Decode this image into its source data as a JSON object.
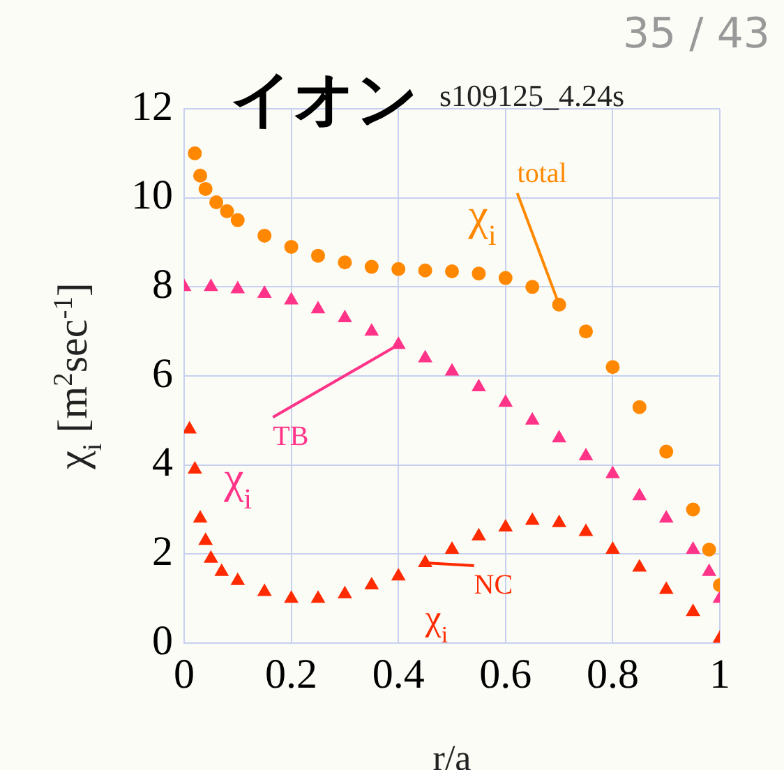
{
  "chart_data": {
    "type": "scatter",
    "title": "イオン",
    "subtitle": "s109125_4.24s",
    "xlabel": "r/a",
    "ylabel": "χ$_{i}$ [m$^{2}$sec$^{-1}$]",
    "xlim": [
      0,
      1
    ],
    "xticks": [
      0,
      0.2,
      0.4,
      0.6,
      0.8,
      1
    ],
    "ylim": [
      0,
      12
    ],
    "yticks": [
      0,
      2,
      4,
      6,
      8,
      10,
      12
    ],
    "grid": true,
    "series": [
      {
        "name": "total",
        "color": "#ff8800",
        "marker": "circle",
        "x": [
          0.02,
          0.03,
          0.04,
          0.06,
          0.08,
          0.1,
          0.15,
          0.2,
          0.25,
          0.3,
          0.35,
          0.4,
          0.45,
          0.5,
          0.55,
          0.6,
          0.65,
          0.7,
          0.75,
          0.8,
          0.85,
          0.9,
          0.95,
          0.98,
          1.0
        ],
        "values": [
          11.0,
          10.5,
          10.2,
          9.9,
          9.7,
          9.5,
          9.15,
          8.9,
          8.7,
          8.55,
          8.45,
          8.4,
          8.37,
          8.35,
          8.3,
          8.2,
          8.0,
          7.6,
          7.0,
          6.2,
          5.3,
          4.3,
          3.0,
          2.1,
          1.3
        ]
      },
      {
        "name": "TB",
        "color": "#ff3388",
        "marker": "triangle",
        "x": [
          0,
          0.05,
          0.1,
          0.15,
          0.2,
          0.25,
          0.3,
          0.35,
          0.4,
          0.45,
          0.5,
          0.55,
          0.6,
          0.65,
          0.7,
          0.75,
          0.8,
          0.85,
          0.9,
          0.95,
          0.98,
          1.0
        ],
        "values": [
          8.0,
          8.0,
          7.95,
          7.85,
          7.7,
          7.5,
          7.3,
          7.0,
          6.7,
          6.4,
          6.1,
          5.75,
          5.4,
          5.0,
          4.6,
          4.2,
          3.8,
          3.3,
          2.8,
          2.1,
          1.6,
          1.0
        ]
      },
      {
        "name": "NC",
        "color": "#ff2a00",
        "marker": "triangle",
        "x": [
          0.01,
          0.02,
          0.03,
          0.04,
          0.05,
          0.07,
          0.1,
          0.15,
          0.2,
          0.25,
          0.3,
          0.35,
          0.4,
          0.45,
          0.5,
          0.55,
          0.6,
          0.65,
          0.7,
          0.75,
          0.8,
          0.85,
          0.9,
          0.95,
          1.0
        ],
        "values": [
          4.8,
          3.9,
          2.8,
          2.3,
          1.9,
          1.6,
          1.4,
          1.15,
          1.0,
          1.0,
          1.1,
          1.3,
          1.5,
          1.8,
          2.1,
          2.4,
          2.6,
          2.75,
          2.7,
          2.5,
          2.1,
          1.7,
          1.2,
          0.7,
          0.1
        ]
      }
    ],
    "annotations": [
      {
        "text": "χ$_{i}$",
        "x": 0.7,
        "y": 7.6
      },
      {
        "text": "χ$_{i}$",
        "x": 0.4,
        "y": 6.7
      },
      {
        "text": "χ$_{i}$",
        "x": 0.45,
        "y": 1.8
      },
      "35 / 43"
    ]
  }
}
